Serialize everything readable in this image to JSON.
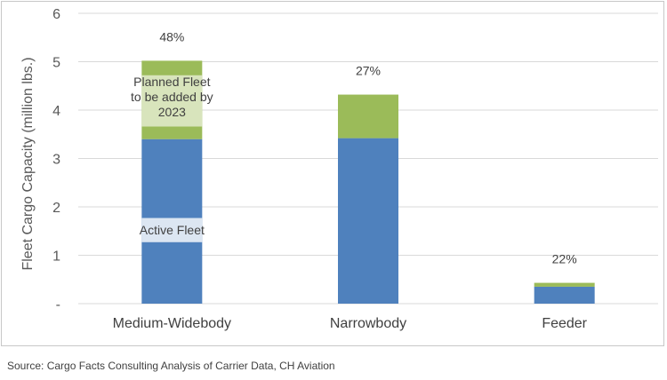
{
  "chart_data": {
    "type": "bar",
    "stacked": true,
    "categories": [
      "Medium-Widebody",
      "Narrowbody",
      "Feeder"
    ],
    "series": [
      {
        "values": [
          3.4,
          3.42,
          0.35
        ],
        "color": "#4f81bd"
      },
      {
        "values": [
          1.62,
          0.9,
          0.08
        ],
        "color": "#9bbb59"
      }
    ],
    "growth_labels": [
      "48%",
      "27%",
      "22%"
    ],
    "annotations": {
      "planned": [
        "Planned Fleet",
        "to be added by",
        "2023"
      ],
      "active": "Active Fleet"
    },
    "ylabel": "Fleet Cargo Capacity (million lbs.)",
    "y_ticks": [
      "-",
      "1",
      "2",
      "3",
      "4",
      "5",
      "6"
    ],
    "ylim": [
      0,
      6
    ],
    "grid": true
  },
  "source": "Source: Cargo Facts Consulting Analysis of Carrier Data, CH Aviation"
}
